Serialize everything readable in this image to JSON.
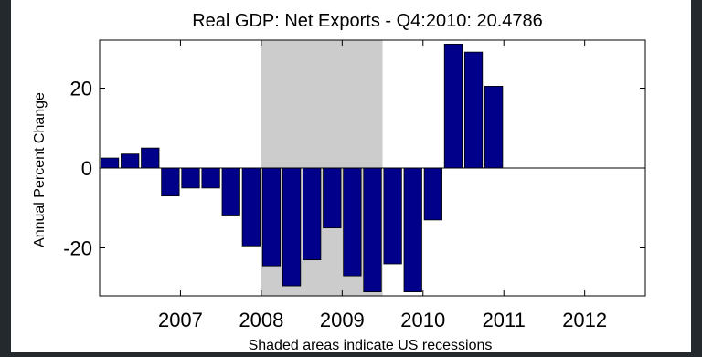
{
  "chart_data": {
    "type": "bar",
    "title": "Real GDP: Net Exports - Q4:2010: 20.4786",
    "ylabel": "Annual Percent Change",
    "xlabel": "Shaded areas indicate US recessions",
    "x_start": 2006.0,
    "x_end": 2012.75,
    "ylim": [
      -32,
      32
    ],
    "yticks": [
      -20,
      0,
      20
    ],
    "xticks": [
      2007,
      2008,
      2009,
      2010,
      2011,
      2012
    ],
    "bar_color": "#00008b",
    "recession_color": "#cccccc",
    "recession": {
      "start": 2008.0,
      "end": 2009.5
    },
    "series": [
      {
        "x": [
          "2006 Q1",
          "2006 Q2",
          "2006 Q3",
          "2006 Q4",
          "2007 Q1",
          "2007 Q2",
          "2007 Q3",
          "2007 Q4",
          "2008 Q1",
          "2008 Q2",
          "2008 Q3",
          "2008 Q4",
          "2009 Q1",
          "2009 Q2",
          "2009 Q3",
          "2009 Q4",
          "2010 Q1",
          "2010 Q2",
          "2010 Q3",
          "2010 Q4"
        ],
        "values": [
          2.5,
          3.5,
          5.0,
          -7.0,
          -5.0,
          -5.0,
          -12.0,
          -19.5,
          -24.5,
          -29.5,
          -23.0,
          -15.0,
          -27.0,
          -31.0,
          -24.0,
          -31.0,
          -13.0,
          31.0,
          29.0,
          20.4786
        ]
      }
    ]
  }
}
